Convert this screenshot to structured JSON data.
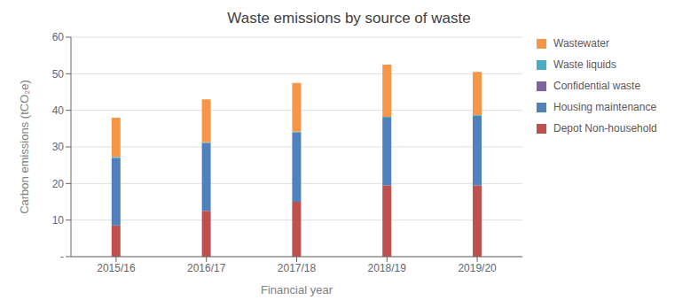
{
  "chart_data": {
    "type": "bar",
    "title": "Waste emissions by source of waste",
    "x_label": "Financial year",
    "y_label": "Carbon emissions (tCO₂e)",
    "categories": [
      "2015/16",
      "2016/17",
      "2017/18",
      "2018/19",
      "2019/20"
    ],
    "series": [
      {
        "name": "Depot Non-household",
        "color": "#c0504d",
        "values": [
          8.5,
          12.5,
          15.0,
          19.5,
          19.5
        ]
      },
      {
        "name": "Housing maintenance",
        "color": "#4f81bd",
        "values": [
          18.5,
          18.5,
          19.0,
          18.5,
          19.0
        ]
      },
      {
        "name": "Confidential waste",
        "color": "#8064a2",
        "values": [
          0.0,
          0.0,
          0.0,
          0.0,
          0.0
        ]
      },
      {
        "name": "Waste liquids",
        "color": "#4bacc6",
        "values": [
          0.3,
          0.3,
          0.2,
          0.2,
          0.2
        ]
      },
      {
        "name": "Wastewater",
        "color": "#f79646",
        "values": [
          10.7,
          11.7,
          13.3,
          14.3,
          11.8
        ]
      }
    ],
    "stacked": true,
    "ylim": [
      0,
      60
    ],
    "yticks": [
      {
        "value": 0,
        "label": "-"
      },
      10,
      20,
      30,
      40,
      50,
      60
    ],
    "grid": true,
    "legend": "right"
  }
}
